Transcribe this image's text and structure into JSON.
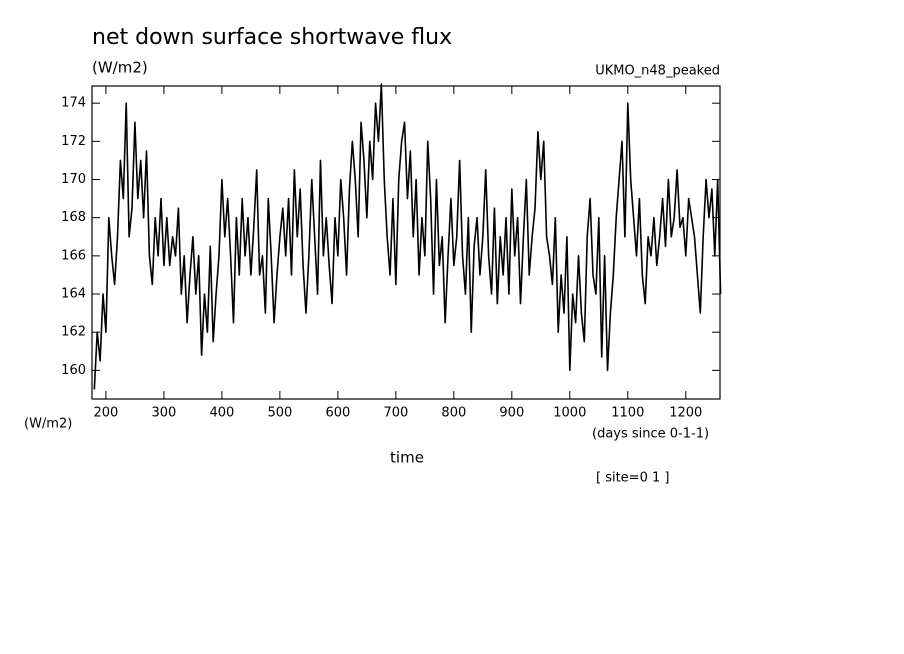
{
  "chart_data": {
    "type": "line",
    "title": "net down surface shortwave flux",
    "y_unit": "(W/m2)",
    "model_label": "UKMO_n48_peaked",
    "y_axis_label": "(W/m2)",
    "x_unit": "(days since 0-1-1)",
    "x_axis_label": "time",
    "site_label": "[ site=0 1 ]",
    "xlim": [
      176,
      1259
    ],
    "ylim": [
      158.5,
      174.9
    ],
    "xticks": [
      200,
      300,
      400,
      500,
      600,
      700,
      800,
      900,
      1000,
      1100,
      1200
    ],
    "yticks": [
      160,
      162,
      164,
      166,
      168,
      170,
      172,
      174
    ],
    "color": "#000000",
    "x": [
      180,
      185,
      190,
      195,
      200,
      205,
      210,
      215,
      220,
      225,
      230,
      235,
      240,
      245,
      250,
      255,
      260,
      265,
      270,
      275,
      280,
      285,
      290,
      295,
      300,
      305,
      310,
      315,
      320,
      325,
      330,
      335,
      340,
      345,
      350,
      355,
      360,
      365,
      370,
      375,
      380,
      385,
      390,
      395,
      400,
      405,
      410,
      415,
      420,
      425,
      430,
      435,
      440,
      445,
      450,
      455,
      460,
      465,
      470,
      475,
      480,
      485,
      490,
      495,
      500,
      505,
      510,
      515,
      520,
      525,
      530,
      535,
      540,
      545,
      550,
      555,
      560,
      565,
      570,
      575,
      580,
      585,
      590,
      595,
      600,
      605,
      610,
      615,
      620,
      625,
      630,
      635,
      640,
      645,
      650,
      655,
      660,
      665,
      670,
      675,
      680,
      685,
      690,
      695,
      700,
      705,
      710,
      715,
      720,
      725,
      730,
      735,
      740,
      745,
      750,
      755,
      760,
      765,
      770,
      775,
      780,
      785,
      790,
      795,
      800,
      805,
      810,
      815,
      820,
      825,
      830,
      835,
      840,
      845,
      850,
      855,
      860,
      865,
      870,
      875,
      880,
      885,
      890,
      895,
      900,
      905,
      910,
      915,
      920,
      925,
      930,
      935,
      940,
      945,
      950,
      955,
      960,
      965,
      970,
      975,
      980,
      985,
      990,
      995,
      1000,
      1005,
      1010,
      1015,
      1020,
      1025,
      1030,
      1035,
      1040,
      1045,
      1050,
      1055,
      1060,
      1065,
      1070,
      1075,
      1080,
      1085,
      1090,
      1095,
      1100,
      1105,
      1110,
      1115,
      1120,
      1125,
      1130,
      1135,
      1140,
      1145,
      1150,
      1155,
      1160,
      1165,
      1170,
      1175,
      1180,
      1185,
      1190,
      1195,
      1200,
      1205,
      1210,
      1215,
      1220,
      1225,
      1230,
      1235,
      1240,
      1245,
      1250,
      1255,
      1260
    ],
    "values": [
      159,
      162,
      160.5,
      164,
      162,
      168,
      166,
      164.5,
      167,
      171,
      169,
      174,
      167,
      168.5,
      173,
      169,
      171,
      168,
      171.5,
      166,
      164.5,
      168,
      166,
      169,
      165.5,
      168,
      165.5,
      167,
      166,
      168.5,
      164,
      166,
      162.5,
      165,
      167,
      164,
      166,
      160.8,
      164,
      162,
      166.5,
      161.5,
      164,
      166,
      170,
      167,
      169,
      166,
      162.5,
      168,
      165,
      169,
      166,
      168,
      165,
      167.5,
      170.5,
      165,
      166,
      163,
      169,
      166,
      162.5,
      165,
      167,
      168.5,
      166,
      169,
      165,
      170.5,
      167,
      169.5,
      165.5,
      163,
      166,
      170,
      167,
      164,
      171,
      166,
      168,
      165.5,
      163.5,
      168,
      166,
      170,
      168,
      165,
      169.5,
      172,
      170,
      167,
      173,
      171,
      168,
      172,
      170,
      174,
      172,
      175,
      170,
      167,
      165,
      169,
      164.5,
      170,
      172,
      173,
      169,
      171.5,
      167,
      170,
      165,
      168,
      166,
      172,
      169,
      164,
      170,
      165.5,
      167,
      162.5,
      166,
      169,
      165.5,
      167,
      171,
      166,
      164,
      168,
      162,
      166.5,
      168,
      165,
      167,
      170.5,
      166,
      164,
      168.5,
      163.5,
      167,
      165,
      168,
      164,
      169.5,
      166,
      168,
      163.5,
      167,
      170,
      165,
      167,
      168.5,
      172.5,
      170,
      172,
      167,
      166,
      164.5,
      168,
      162,
      165,
      163,
      167,
      160,
      164,
      162.5,
      166,
      163,
      161.5,
      167,
      169,
      165,
      164,
      168,
      160.7,
      166,
      160,
      163,
      165,
      168,
      170,
      172,
      167,
      174,
      170,
      168,
      166,
      169,
      165,
      163.5,
      167,
      166,
      168,
      165.5,
      167,
      169,
      166.5,
      170,
      167,
      168,
      170.5,
      167.5,
      168,
      166,
      169,
      168,
      167,
      165,
      163,
      167,
      170,
      168,
      169.5,
      166,
      170,
      164
    ]
  }
}
